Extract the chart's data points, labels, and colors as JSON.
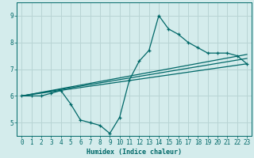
{
  "title": "",
  "xlabel": "Humidex (Indice chaleur)",
  "ylabel": "",
  "xlim": [
    -0.5,
    23.5
  ],
  "ylim": [
    4.5,
    9.5
  ],
  "yticks": [
    5,
    6,
    7,
    8,
    9
  ],
  "xticks": [
    0,
    1,
    2,
    3,
    4,
    5,
    6,
    7,
    8,
    9,
    10,
    11,
    12,
    13,
    14,
    15,
    16,
    17,
    18,
    19,
    20,
    21,
    22,
    23
  ],
  "bg_color": "#d4ecec",
  "grid_color": "#b8d4d4",
  "line_color": "#006868",
  "main_line_x": [
    0,
    1,
    2,
    3,
    4,
    5,
    6,
    7,
    8,
    9,
    10,
    11,
    12,
    13,
    14,
    15,
    16,
    17,
    18,
    19,
    20,
    21,
    22,
    23
  ],
  "main_line_y": [
    6.0,
    6.0,
    6.0,
    6.1,
    6.2,
    5.7,
    5.1,
    5.0,
    4.9,
    4.6,
    5.2,
    6.6,
    7.3,
    7.7,
    9.0,
    8.5,
    8.3,
    8.0,
    7.8,
    7.6,
    7.6,
    7.6,
    7.5,
    7.2
  ],
  "straight_lines": [
    {
      "x": [
        0,
        23
      ],
      "y": [
        6.0,
        7.2
      ]
    },
    {
      "x": [
        0,
        23
      ],
      "y": [
        6.0,
        7.4
      ]
    },
    {
      "x": [
        0,
        23
      ],
      "y": [
        6.0,
        7.55
      ]
    }
  ]
}
